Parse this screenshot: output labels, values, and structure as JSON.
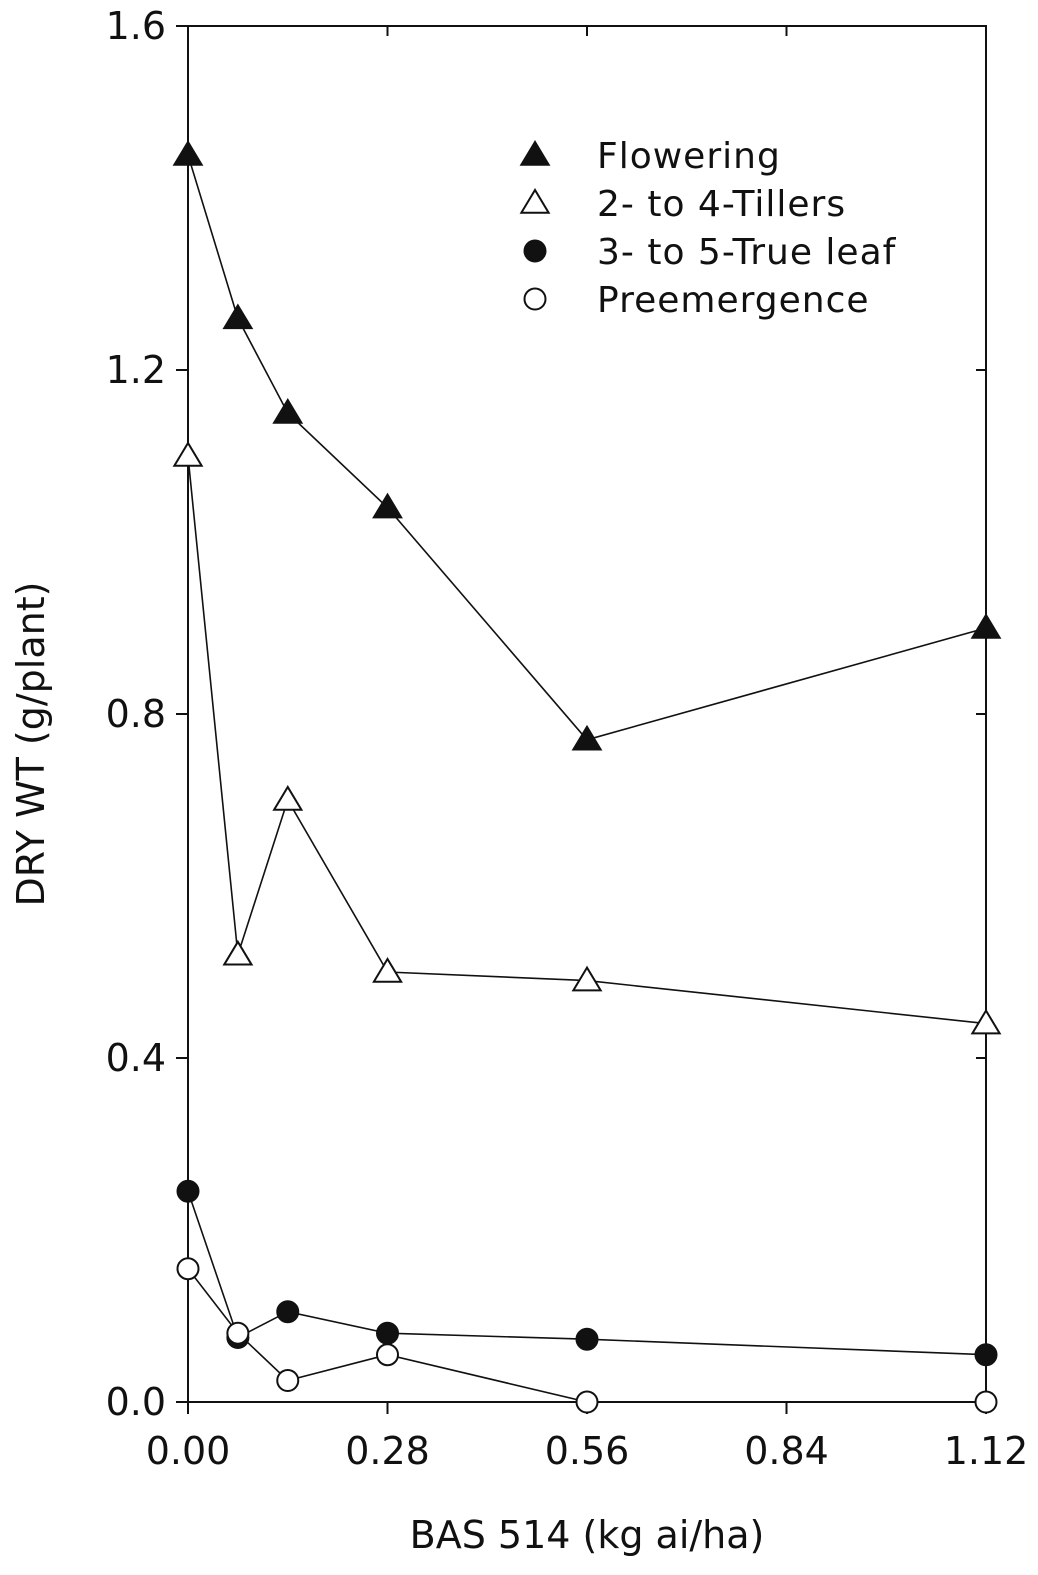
{
  "chart_data": {
    "type": "line",
    "title": "",
    "xlabel": "BAS 514 (kg ai/ha)",
    "ylabel": "DRY WT (g/plant)",
    "xlim": [
      0.0,
      1.12
    ],
    "ylim": [
      0.0,
      1.6
    ],
    "x_ticks": [
      0.0,
      0.28,
      0.56,
      0.84,
      1.12
    ],
    "x_tick_labels": [
      "0.00",
      "0.28",
      "0.56",
      "0.84",
      "1.12"
    ],
    "y_ticks": [
      0.0,
      0.4,
      0.8,
      1.2,
      1.6
    ],
    "y_tick_labels": [
      "0.0",
      "0.4",
      "0.8",
      "1.2",
      "1.6"
    ],
    "grid": false,
    "legend_position": "top-right",
    "x": [
      0.0,
      0.07,
      0.14,
      0.28,
      0.56,
      1.12
    ],
    "series": [
      {
        "name": "Flowering",
        "marker": "triangle-filled",
        "values": [
          1.45,
          1.26,
          1.15,
          1.04,
          0.77,
          0.9
        ]
      },
      {
        "name": "2- to 4-Tillers",
        "marker": "triangle-open",
        "values": [
          1.1,
          0.52,
          0.7,
          0.5,
          0.49,
          0.44
        ]
      },
      {
        "name": "3- to 5-True leaf",
        "marker": "circle-filled",
        "values": [
          0.245,
          0.075,
          0.105,
          0.08,
          0.073,
          0.055
        ]
      },
      {
        "name": "Preemergence",
        "marker": "circle-open",
        "values": [
          0.155,
          0.08,
          0.025,
          0.055,
          0.0,
          0.0
        ]
      }
    ]
  }
}
